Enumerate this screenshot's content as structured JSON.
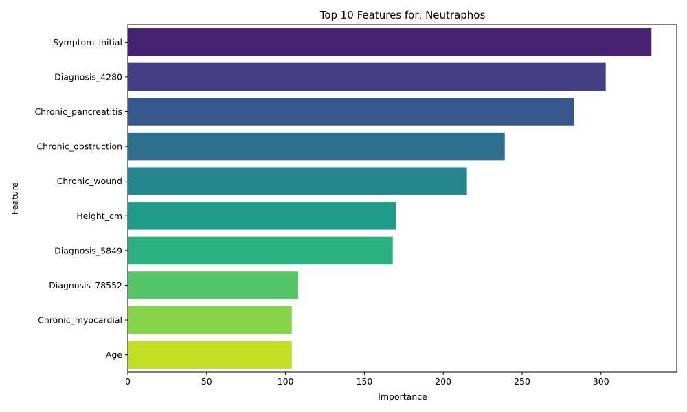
{
  "chart_data": {
    "type": "bar",
    "orientation": "horizontal",
    "title": "Top 10 Features for: Neutraphos",
    "xlabel": "Importance",
    "ylabel": "Feature",
    "xlim": [
      0,
      348
    ],
    "xticks": [
      "0",
      "50",
      "100",
      "150",
      "200",
      "250",
      "300"
    ],
    "categories": [
      "Symptom_initial",
      "Diagnosis_4280",
      "Chronic_pancreatitis",
      "Chronic_obstruction",
      "Chronic_wound",
      "Height_cm",
      "Diagnosis_5849",
      "Diagnosis_78552",
      "Chronic_myocardial",
      "Age"
    ],
    "values": [
      332,
      303,
      283,
      239,
      215,
      170,
      168,
      108,
      104,
      104
    ],
    "colors": [
      "#482173",
      "#433e85",
      "#38588c",
      "#2d708e",
      "#25858e",
      "#1e9b8a",
      "#2ab07f",
      "#52c569",
      "#86d549",
      "#c2df23"
    ],
    "grid": false,
    "legend": "none"
  }
}
